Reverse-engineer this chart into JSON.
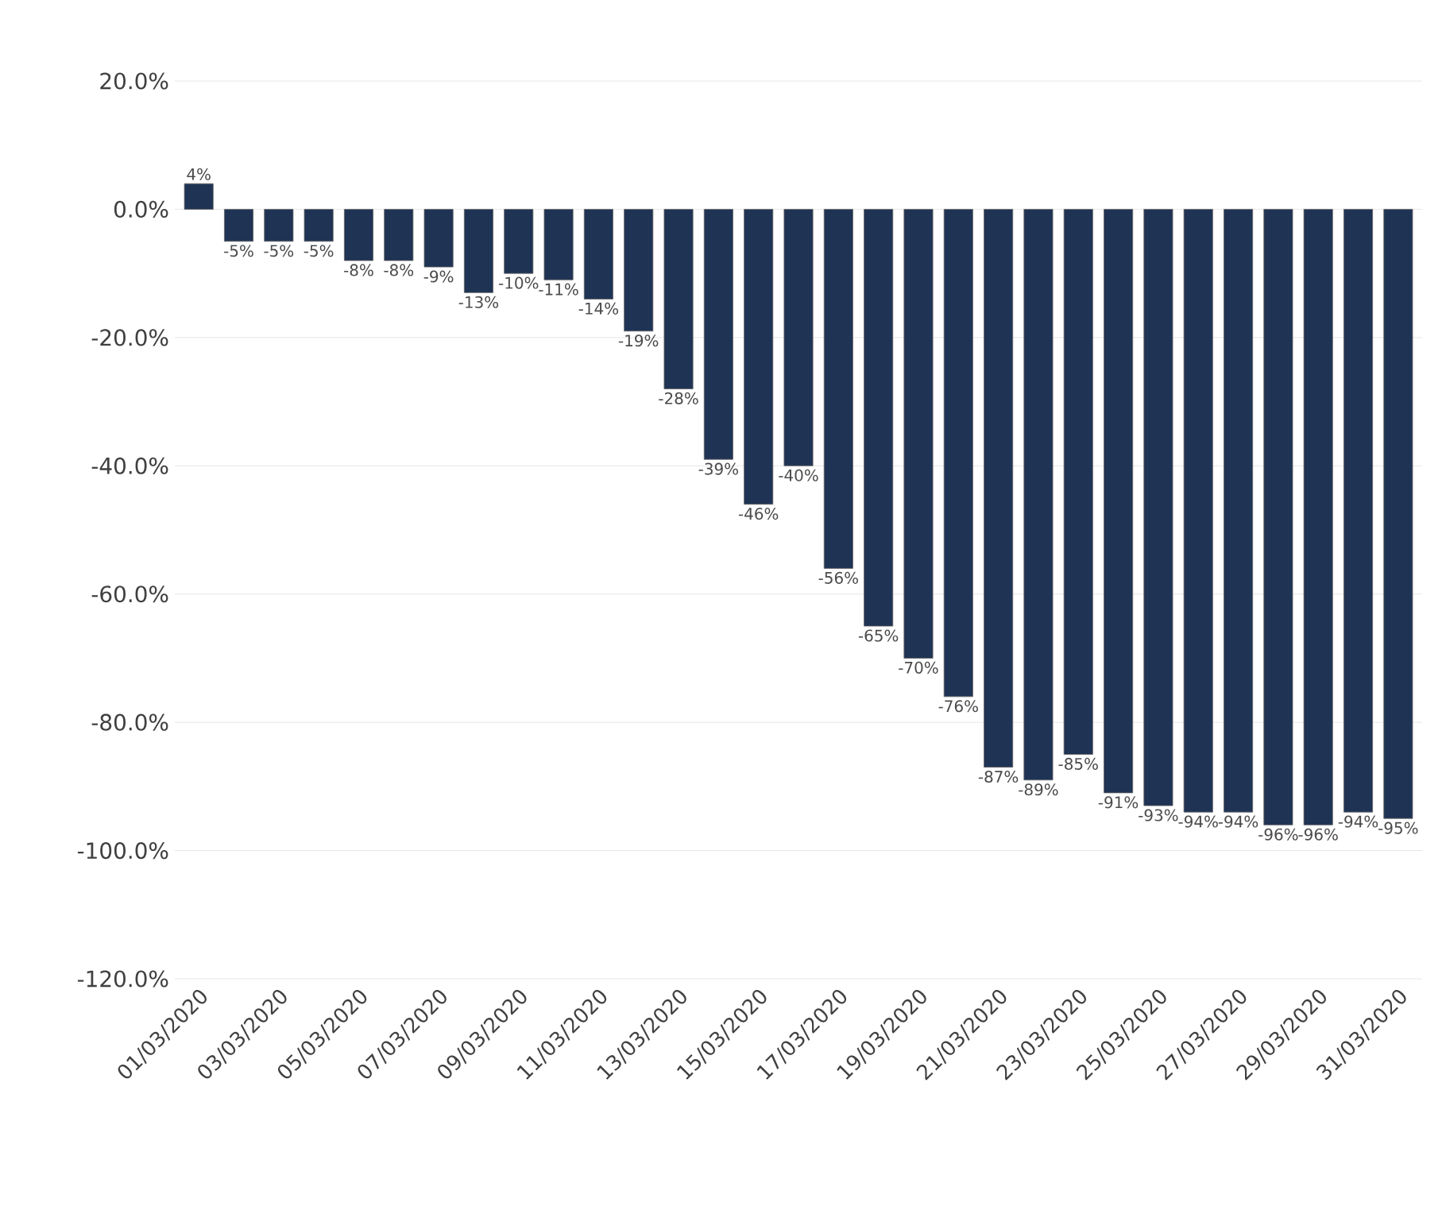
{
  "chart_data": {
    "type": "bar",
    "categories": [
      "01/03/2020",
      null,
      "03/03/2020",
      null,
      "05/03/2020",
      null,
      "07/03/2020",
      null,
      "09/03/2020",
      null,
      "11/03/2020",
      null,
      "13/03/2020",
      null,
      "15/03/2020",
      null,
      "17/03/2020",
      null,
      "19/03/2020",
      null,
      "21/03/2020",
      null,
      "23/03/2020",
      null,
      "25/03/2020",
      null,
      "27/03/2020",
      null,
      "29/03/2020",
      null,
      "31/03/2020"
    ],
    "values": [
      4,
      -5,
      -5,
      -5,
      -8,
      -8,
      -9,
      -13,
      -10,
      -11,
      -14,
      -19,
      -28,
      -39,
      -46,
      -40,
      -56,
      -65,
      -70,
      -76,
      -87,
      -89,
      -85,
      -91,
      -93,
      -94,
      -94,
      -96,
      -96,
      -94,
      -95
    ],
    "value_labels": [
      "4%",
      "-5%",
      "-5%",
      "-5%",
      "-8%",
      "-8%",
      "-9%",
      "-13%",
      "-10%",
      "-11%",
      "-14%",
      "-19%",
      "-28%",
      "-39%",
      "-46%",
      "-40%",
      "-56%",
      "-65%",
      "-70%",
      "-76%",
      "-87%",
      "-89%",
      "-85%",
      "-91%",
      "-93%",
      "-94%",
      "-94%",
      "-96%",
      "-96%",
      "-94%",
      "-95%"
    ],
    "color": "#1f3354",
    "ylim": [
      -120,
      20
    ],
    "yticks": [
      {
        "value": -120,
        "label": "-120.0%"
      },
      {
        "value": -100,
        "label": "-100.0%"
      },
      {
        "value": -80,
        "label": "-80.0%"
      },
      {
        "value": -60,
        "label": "-60.0%"
      },
      {
        "value": -40,
        "label": "-40.0%"
      },
      {
        "value": -20,
        "label": "-20.0%"
      },
      {
        "value": 0,
        "label": "0.0%"
      },
      {
        "value": 20,
        "label": "20.0%"
      }
    ],
    "grid": "y"
  }
}
